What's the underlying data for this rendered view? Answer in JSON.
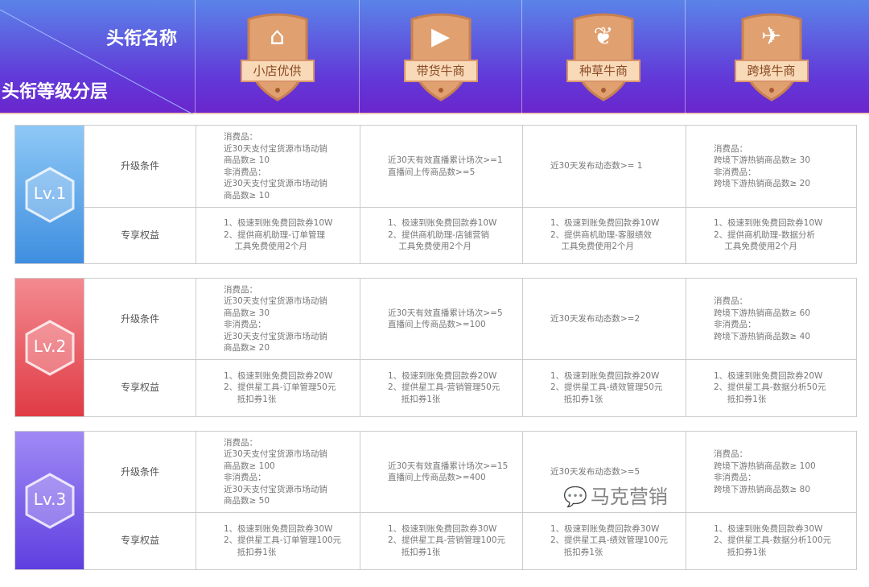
{
  "header": {
    "title_name": "头衔名称",
    "title_tier": "头衔等级分层",
    "titles": [
      {
        "label": "小店优供",
        "icon": "store-icon"
      },
      {
        "label": "带货牛商",
        "icon": "video-camera-icon"
      },
      {
        "label": "种草牛商",
        "icon": "sprout-icon"
      },
      {
        "label": "跨境牛商",
        "icon": "airplane-icon"
      }
    ]
  },
  "colors": {
    "header_top": "#5a84e8",
    "header_bottom": "#6a26cc",
    "lv1": "#4f9be8",
    "lv2": "#e8454f",
    "lv3": "#6b4ae6",
    "badge": "#e0a070"
  },
  "row_labels": {
    "condition": "升级条件",
    "benefit": "专享权益"
  },
  "levels": [
    {
      "name": "Lv.1",
      "conditions": [
        "消费品：\n近30天支付宝货源市场动销\n商品数≥ 10\n非消费品：\n近30天支付宝货源市场动销\n商品数≥ 10",
        "近30天有效直播累计场次>=1\n直播间上传商品数>=5",
        "近30天发布动态数>= 1",
        "消费品：\n跨境下游热销商品数≥ 30\n非消费品：\n跨境下游热销商品数≥ 20"
      ],
      "benefits": [
        "1、极速到账免费回款券10W\n2、提供商机助理-订单管理\n    工具免费使用2个月",
        "1、极速到账免费回款券10W\n2、提供商机助理-店铺营销\n    工具免费使用2个月",
        "1、极速到账免费回款券10W\n2、提供商机助理-客服绩效\n    工具免费使用2个月",
        "1、极速到账免费回款券10W\n2、提供商机助理-数据分析\n    工具免费使用2个月"
      ]
    },
    {
      "name": "Lv.2",
      "conditions": [
        "消费品：\n近30天支付宝货源市场动销\n商品数≥ 30\n非消费品：\n近30天支付宝货源市场动销\n商品数≥ 20",
        "近30天有效直播累计场次>=5\n直播间上传商品数>=100",
        "近30天发布动态数>=2",
        "消费品：\n跨境下游热销商品数≥ 60\n非消费品：\n跨境下游热销商品数≥ 40"
      ],
      "benefits": [
        "1、极速到账免费回款券20W\n2、提供星工具-订单管理50元\n     抵扣券1张",
        "1、极速到账免费回款券20W\n2、提供星工具-营销管理50元\n     抵扣券1张",
        "1、极速到账免费回款券20W\n2、提供星工具-绩效管理50元\n     抵扣券1张",
        "1、极速到账免费回款券20W\n2、提供星工具-数据分析50元\n     抵扣券1张"
      ]
    },
    {
      "name": "Lv.3",
      "conditions": [
        "消费品：\n近30天支付宝货源市场动销\n商品数≥ 100\n非消费品：\n近30天支付宝货源市场动销\n商品数≥ 50",
        "近30天有效直播累计场次>=15\n直播间上传商品数>=400",
        "近30天发布动态数>=5",
        "消费品：\n跨境下游热销商品数≥ 100\n非消费品：\n跨境下游热销商品数≥ 80"
      ],
      "benefits": [
        "1、极速到账免费回款券30W\n2、提供星工具-订单管理100元\n     抵扣券1张",
        "1、极速到账免费回款券30W\n2、提供星工具-营销管理100元\n     抵扣券1张",
        "1、极速到账免费回款券30W\n2、提供星工具-绩效管理100元\n     抵扣券1张",
        "1、极速到账免费回款券30W\n2、提供星工具-数据分析100元\n     抵扣券1张"
      ]
    }
  ],
  "watermark": "马克营销"
}
